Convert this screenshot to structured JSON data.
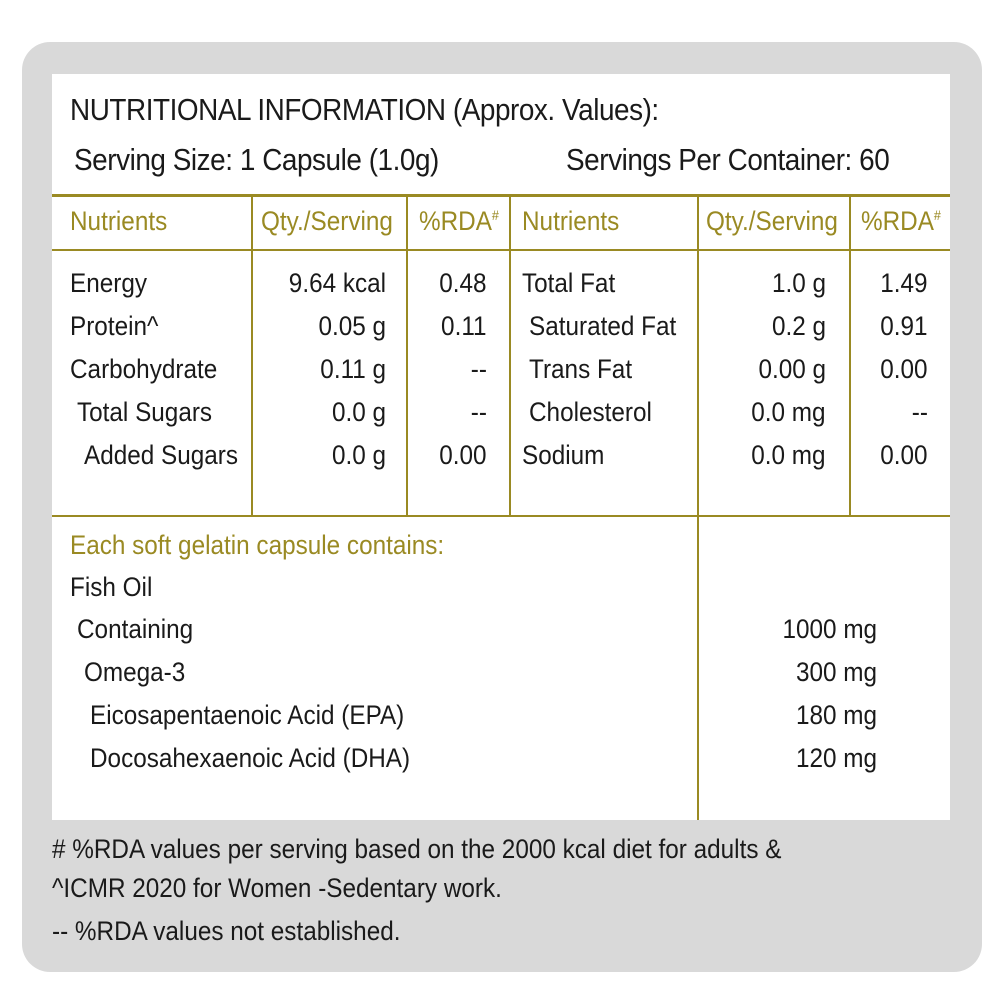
{
  "header": {
    "title": "NUTRITIONAL INFORMATION (Approx. Values):",
    "serving_size": "Serving Size: 1 Capsule (1.0g)",
    "servings_per_container": "Servings Per Container: 60"
  },
  "table": {
    "headers": [
      "Nutrients",
      "Qty./Serving",
      "%RDA",
      "#",
      "Nutrients",
      "Qty./Serving",
      "%RDA",
      "#"
    ],
    "left_rows": [
      {
        "name": "Energy",
        "qty": "9.64 kcal",
        "rda": "0.48"
      },
      {
        "name": "Protein^",
        "qty": "0.05 g",
        "rda": "0.11"
      },
      {
        "name": "Carbohydrate",
        "qty": "0.11 g",
        "rda": "--"
      },
      {
        "name": "Total Sugars",
        "qty": "0.0 g",
        "rda": "--"
      },
      {
        "name": "Added Sugars",
        "qty": "0.0 g",
        "rda": "0.00"
      }
    ],
    "right_rows": [
      {
        "name": "Total Fat",
        "qty": "1.0 g",
        "rda": "1.49"
      },
      {
        "name": "Saturated Fat",
        "qty": "0.2 g",
        "rda": "0.91"
      },
      {
        "name": "Trans Fat",
        "qty": "0.00 g",
        "rda": "0.00"
      },
      {
        "name": "Cholesterol",
        "qty": "0.0 mg",
        "rda": "--"
      },
      {
        "name": "Sodium",
        "qty": "0.0 mg",
        "rda": "0.00"
      }
    ]
  },
  "capsule": {
    "heading": "Each soft gelatin capsule contains:",
    "rows": [
      {
        "name": "Fish Oil",
        "value": ""
      },
      {
        "name": "Containing",
        "value": "1000 mg"
      },
      {
        "name": "Omega-3",
        "value": "300 mg"
      },
      {
        "name": "Eicosapentaenoic Acid (EPA)",
        "value": "180 mg"
      },
      {
        "name": "Docosahexaenoic Acid (DHA)",
        "value": "120 mg"
      }
    ]
  },
  "footnotes": {
    "line1": "# %RDA values per serving based on the 2000 kcal diet for adults &",
    "line2": "^ICMR 2020 for Women -Sedentary work.",
    "line3": "-- %RDA values not established."
  }
}
